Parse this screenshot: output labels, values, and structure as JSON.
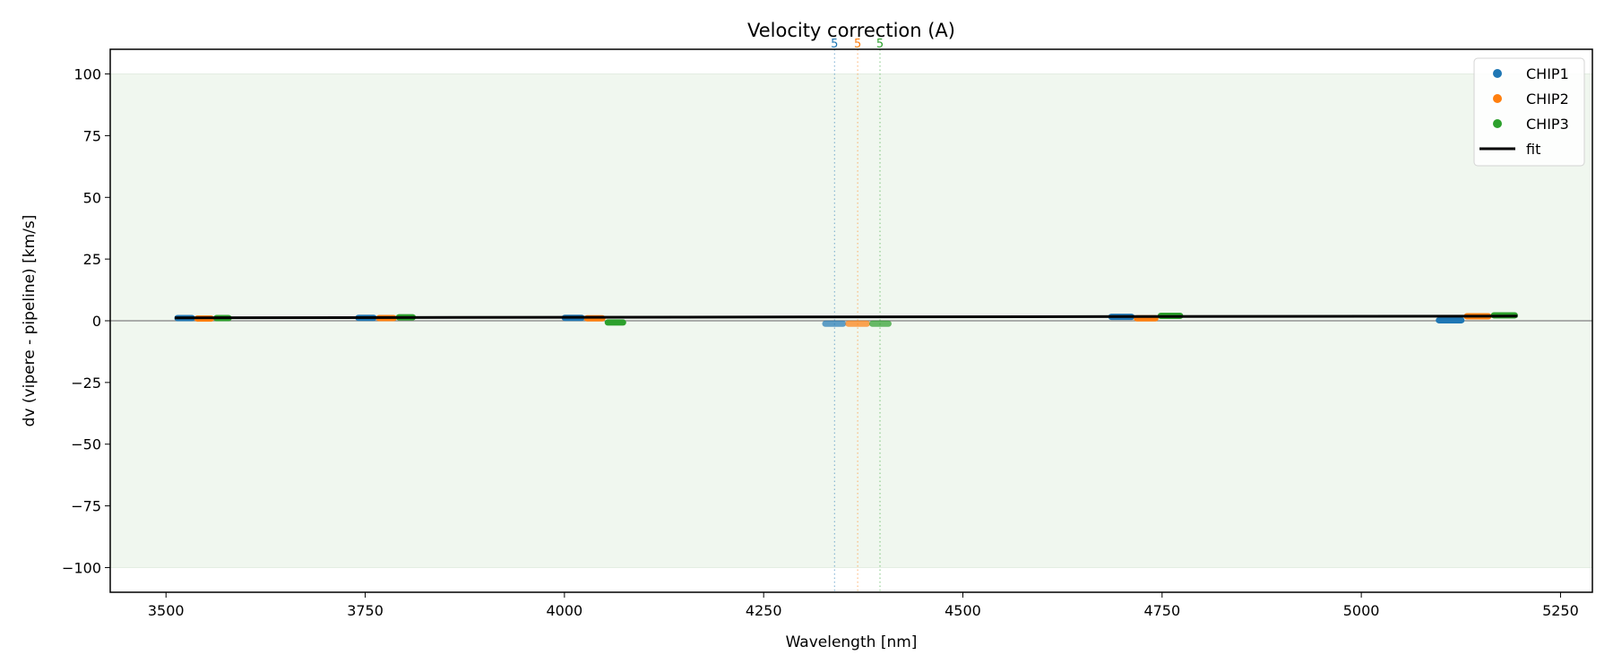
{
  "chart_data": {
    "type": "scatter",
    "title": "Velocity correction (A)",
    "xlabel": "Wavelength [nm]",
    "ylabel": "dv (vipere - pipeline) [km/s]",
    "xlim": [
      3430,
      5290
    ],
    "ylim": [
      -110,
      110
    ],
    "xticks": [
      3500,
      3750,
      4000,
      4250,
      4500,
      4750,
      5000,
      5250
    ],
    "yticks": [
      100,
      75,
      50,
      25,
      0,
      -25,
      -50,
      -75,
      -100
    ],
    "ytick_labels": [
      "100",
      "75",
      "50",
      "25",
      "0",
      "−25",
      "−50",
      "−75",
      "−100"
    ],
    "shaded_band": {
      "y": [
        -100,
        100
      ],
      "color": "#f0f7ef"
    },
    "zero_line": true,
    "grid": false,
    "legend_position": "top-right",
    "series": [
      {
        "name": "CHIP1",
        "color": "#1f77b4",
        "orders": [
          {
            "x": [
              3511,
              3536
            ],
            "y": 1.1
          },
          {
            "x": [
              3738,
              3764
            ],
            "y": 1.2
          },
          {
            "x": [
              3997,
              4025
            ],
            "y": 1.2
          },
          {
            "x": [
              4324,
              4353
            ],
            "y": -1.2,
            "faded": true
          },
          {
            "x": [
              4683,
              4715
            ],
            "y": 1.6
          },
          {
            "x": [
              5094,
              5129
            ],
            "y": 0.2
          }
        ]
      },
      {
        "name": "CHIP2",
        "color": "#ff7f0e",
        "orders": [
          {
            "x": [
              3536,
              3560
            ],
            "y": 0.9
          },
          {
            "x": [
              3764,
              3789
            ],
            "y": 1.1
          },
          {
            "x": [
              4025,
              4051
            ],
            "y": 1.0
          },
          {
            "x": [
              4353,
              4383
            ],
            "y": -1.2,
            "faded": true
          },
          {
            "x": [
              4715,
              4745
            ],
            "y": 1.0
          },
          {
            "x": [
              5129,
              5163
            ],
            "y": 1.8
          }
        ]
      },
      {
        "name": "CHIP3",
        "color": "#2ca02c",
        "orders": [
          {
            "x": [
              3560,
              3582
            ],
            "y": 1.1
          },
          {
            "x": [
              3789,
              3813
            ],
            "y": 1.4
          },
          {
            "x": [
              4051,
              4077
            ],
            "y": -0.7
          },
          {
            "x": [
              4383,
              4410
            ],
            "y": -1.2,
            "faded": true
          },
          {
            "x": [
              4745,
              4776
            ],
            "y": 2.0
          },
          {
            "x": [
              5163,
              5196
            ],
            "y": 2.2
          }
        ]
      }
    ],
    "fit": {
      "name": "fit",
      "color": "#000000",
      "x": [
        3511,
        5196
      ],
      "y": [
        1.2,
        1.9
      ]
    },
    "markers": [
      {
        "x": 4339,
        "label": "5",
        "color": "#1f77b4"
      },
      {
        "x": 4368,
        "label": "5",
        "color": "#ff7f0e"
      },
      {
        "x": 4396,
        "label": "5",
        "color": "#2ca02c"
      }
    ]
  }
}
